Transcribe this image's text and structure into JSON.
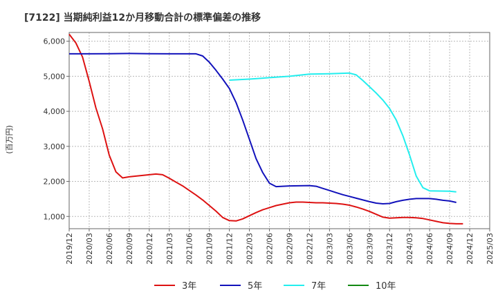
{
  "chart_data": {
    "type": "line",
    "title": "[7122]  当期純利益12か月移動合計の標準偏差の推移",
    "ylabel": "(百万円)",
    "xlabel": "",
    "ylim": [
      650,
      6250
    ],
    "y_ticks": [
      1000,
      2000,
      3000,
      4000,
      5000,
      6000
    ],
    "y_tick_labels": [
      "1,000",
      "2,000",
      "3,000",
      "4,000",
      "5,000",
      "6,000"
    ],
    "x_range": [
      "2019-12",
      "2025-03"
    ],
    "x_tick_labels": [
      "2019/12",
      "2020/03",
      "2020/06",
      "2020/09",
      "2020/12",
      "2021/03",
      "2021/06",
      "2021/09",
      "2021/12",
      "2022/03",
      "2022/06",
      "2022/09",
      "2022/12",
      "2023/03",
      "2023/06",
      "2023/09",
      "2023/12",
      "2024/03",
      "2024/06",
      "2024/09",
      "2024/12",
      "2025/03"
    ],
    "grid": true,
    "legend_position": "bottom",
    "series": [
      {
        "name": "3年",
        "color": "#dd1111",
        "points": [
          [
            "2019-12",
            6200
          ],
          [
            "2020-01",
            5950
          ],
          [
            "2020-02",
            5550
          ],
          [
            "2020-03",
            4850
          ],
          [
            "2020-04",
            4100
          ],
          [
            "2020-05",
            3500
          ],
          [
            "2020-06",
            2750
          ],
          [
            "2020-07",
            2270
          ],
          [
            "2020-08",
            2100
          ],
          [
            "2020-09",
            2130
          ],
          [
            "2020-10",
            2150
          ],
          [
            "2020-11",
            2170
          ],
          [
            "2020-12",
            2190
          ],
          [
            "2021-01",
            2210
          ],
          [
            "2021-02",
            2190
          ],
          [
            "2021-03",
            2090
          ],
          [
            "2021-04",
            1980
          ],
          [
            "2021-05",
            1870
          ],
          [
            "2021-06",
            1740
          ],
          [
            "2021-07",
            1610
          ],
          [
            "2021-08",
            1470
          ],
          [
            "2021-09",
            1310
          ],
          [
            "2021-10",
            1150
          ],
          [
            "2021-11",
            970
          ],
          [
            "2021-12",
            880
          ],
          [
            "2022-01",
            870
          ],
          [
            "2022-02",
            930
          ],
          [
            "2022-03",
            1020
          ],
          [
            "2022-04",
            1110
          ],
          [
            "2022-05",
            1190
          ],
          [
            "2022-06",
            1250
          ],
          [
            "2022-07",
            1310
          ],
          [
            "2022-08",
            1350
          ],
          [
            "2022-09",
            1390
          ],
          [
            "2022-10",
            1410
          ],
          [
            "2022-11",
            1410
          ],
          [
            "2022-12",
            1400
          ],
          [
            "2023-01",
            1390
          ],
          [
            "2023-02",
            1390
          ],
          [
            "2023-03",
            1380
          ],
          [
            "2023-04",
            1370
          ],
          [
            "2023-05",
            1350
          ],
          [
            "2023-06",
            1320
          ],
          [
            "2023-07",
            1270
          ],
          [
            "2023-08",
            1210
          ],
          [
            "2023-09",
            1140
          ],
          [
            "2023-10",
            1060
          ],
          [
            "2023-11",
            980
          ],
          [
            "2023-12",
            950
          ],
          [
            "2024-01",
            960
          ],
          [
            "2024-02",
            970
          ],
          [
            "2024-03",
            970
          ],
          [
            "2024-04",
            960
          ],
          [
            "2024-05",
            940
          ],
          [
            "2024-06",
            900
          ],
          [
            "2024-07",
            860
          ],
          [
            "2024-08",
            820
          ],
          [
            "2024-09",
            800
          ],
          [
            "2024-10",
            790
          ],
          [
            "2024-11",
            790
          ]
        ]
      },
      {
        "name": "5年",
        "color": "#1111bb",
        "points": [
          [
            "2019-12",
            5640
          ],
          [
            "2020-03",
            5640
          ],
          [
            "2020-06",
            5645
          ],
          [
            "2020-09",
            5650
          ],
          [
            "2020-12",
            5645
          ],
          [
            "2021-03",
            5640
          ],
          [
            "2021-06",
            5640
          ],
          [
            "2021-07",
            5640
          ],
          [
            "2021-08",
            5580
          ],
          [
            "2021-09",
            5400
          ],
          [
            "2021-10",
            5170
          ],
          [
            "2021-11",
            4920
          ],
          [
            "2021-12",
            4650
          ],
          [
            "2022-01",
            4250
          ],
          [
            "2022-02",
            3750
          ],
          [
            "2022-03",
            3200
          ],
          [
            "2022-04",
            2650
          ],
          [
            "2022-05",
            2250
          ],
          [
            "2022-06",
            1950
          ],
          [
            "2022-07",
            1850
          ],
          [
            "2022-08",
            1860
          ],
          [
            "2022-09",
            1870
          ],
          [
            "2022-12",
            1880
          ],
          [
            "2023-01",
            1860
          ],
          [
            "2023-02",
            1800
          ],
          [
            "2023-03",
            1740
          ],
          [
            "2023-04",
            1680
          ],
          [
            "2023-05",
            1620
          ],
          [
            "2023-06",
            1570
          ],
          [
            "2023-07",
            1520
          ],
          [
            "2023-08",
            1470
          ],
          [
            "2023-09",
            1420
          ],
          [
            "2023-10",
            1380
          ],
          [
            "2023-11",
            1360
          ],
          [
            "2023-12",
            1370
          ],
          [
            "2024-01",
            1420
          ],
          [
            "2024-02",
            1460
          ],
          [
            "2024-03",
            1490
          ],
          [
            "2024-04",
            1510
          ],
          [
            "2024-05",
            1510
          ],
          [
            "2024-06",
            1510
          ],
          [
            "2024-07",
            1490
          ],
          [
            "2024-08",
            1460
          ],
          [
            "2024-09",
            1440
          ],
          [
            "2024-10",
            1400
          ]
        ]
      },
      {
        "name": "7年",
        "color": "#22eeee",
        "points": [
          [
            "2021-12",
            4890
          ],
          [
            "2022-03",
            4920
          ],
          [
            "2022-06",
            4960
          ],
          [
            "2022-09",
            5000
          ],
          [
            "2022-12",
            5060
          ],
          [
            "2023-03",
            5070
          ],
          [
            "2023-06",
            5090
          ],
          [
            "2023-07",
            5040
          ],
          [
            "2023-08",
            4880
          ],
          [
            "2023-09",
            4700
          ],
          [
            "2023-10",
            4520
          ],
          [
            "2023-11",
            4320
          ],
          [
            "2023-12",
            4080
          ],
          [
            "2024-01",
            3750
          ],
          [
            "2024-02",
            3300
          ],
          [
            "2024-03",
            2750
          ],
          [
            "2024-04",
            2150
          ],
          [
            "2024-05",
            1820
          ],
          [
            "2024-06",
            1730
          ],
          [
            "2024-09",
            1720
          ],
          [
            "2024-10",
            1700
          ]
        ]
      },
      {
        "name": "10年",
        "color": "#118811",
        "points": []
      }
    ]
  }
}
